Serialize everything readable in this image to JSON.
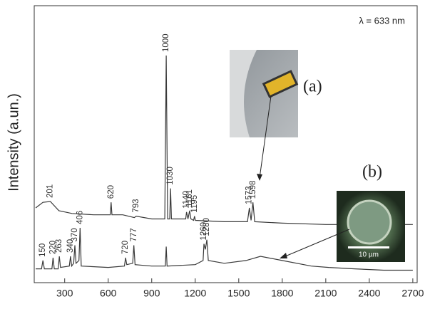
{
  "chart_data": {
    "type": "line",
    "y_label": "Intensity (a.un.)",
    "annotation": "λ = 633 nm",
    "xlim": [
      90,
      2730
    ],
    "ylim": [
      0,
      100
    ],
    "xticks": [
      300,
      600,
      900,
      1200,
      1500,
      1800,
      2100,
      2400,
      2700
    ],
    "insets": {
      "a": {
        "label": "(a)"
      },
      "b": {
        "label": "(b)",
        "scale_bar": "10 µm"
      }
    },
    "series": [
      {
        "color": "#3a3a3a",
        "x": [
          100,
          150,
          201,
          260,
          350,
          500,
          614,
          620,
          626,
          700,
          780,
          793,
          900,
          990,
          1000,
          1010,
          1024,
          1030,
          1036,
          1134,
          1140,
          1150,
          1161,
          1170,
          1189,
          1195,
          1201,
          1400,
          1560,
          1573,
          1585,
          1598,
          1610,
          1800,
          2100,
          2400,
          2700
        ],
        "values": [
          27,
          29,
          29.3,
          26,
          25,
          24.5,
          24.5,
          29,
          24.5,
          24.5,
          23.5,
          24,
          23,
          23,
          82,
          23,
          23,
          34,
          23,
          23,
          25.5,
          23,
          26,
          23,
          22.5,
          24,
          22.5,
          22,
          22,
          27,
          22.5,
          29,
          22,
          21.5,
          21,
          21,
          21
        ],
        "peak_labels": [
          201,
          620,
          793,
          1000,
          1030,
          1140,
          1161,
          1195,
          1573,
          1598
        ]
      },
      {
        "color": "#3a3a3a",
        "x": [
          100,
          140,
          150,
          160,
          212,
          220,
          228,
          255,
          263,
          271,
          332,
          340,
          348,
          362,
          370,
          378,
          398,
          406,
          414,
          600,
          712,
          720,
          728,
          769,
          777,
          785,
          900,
          994,
          1000,
          1006,
          1200,
          1254,
          1260,
          1270,
          1280,
          1290,
          1400,
          1550,
          1650,
          1800,
          2000,
          2120,
          2300,
          2500,
          2700
        ],
        "values": [
          5,
          5,
          8,
          5,
          5,
          9,
          5,
          5,
          9.5,
          5.5,
          6,
          9.5,
          6,
          7,
          13.5,
          7,
          8,
          19.8,
          6,
          5.5,
          6,
          9,
          6.5,
          7,
          13.5,
          6.5,
          6,
          6,
          13,
          6,
          6.5,
          8,
          14,
          12,
          15.5,
          8,
          7,
          8,
          9.5,
          8,
          6,
          5.5,
          5,
          4.5,
          4.5
        ],
        "peak_labels": [
          150,
          220,
          263,
          340,
          370,
          406,
          720,
          777,
          1260,
          1280
        ]
      }
    ]
  }
}
